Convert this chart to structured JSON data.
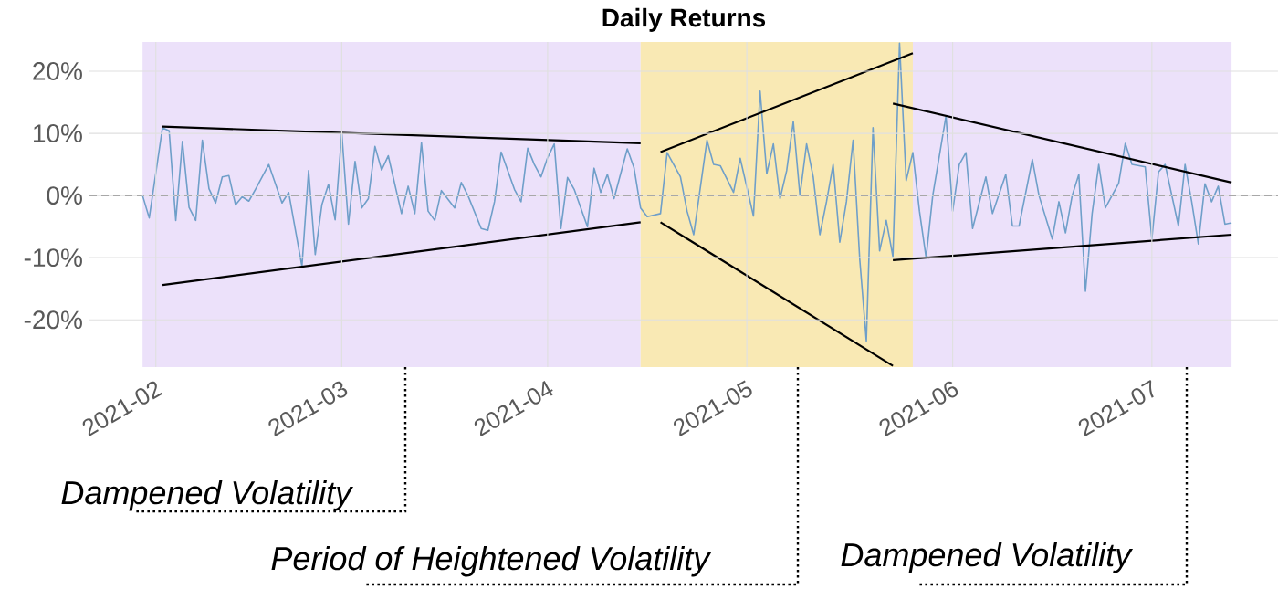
{
  "chart_data": {
    "type": "line",
    "title": "Daily Returns",
    "x": [
      "2021-01-30",
      "2021-01-31",
      "2021-02-02",
      "2021-02-03",
      "2021-02-04",
      "2021-02-05",
      "2021-02-06",
      "2021-02-07",
      "2021-02-08",
      "2021-02-09",
      "2021-02-10",
      "2021-02-11",
      "2021-02-12",
      "2021-02-13",
      "2021-02-14",
      "2021-02-15",
      "2021-02-16",
      "2021-02-18",
      "2021-02-20",
      "2021-02-21",
      "2021-02-23",
      "2021-02-24",
      "2021-02-25",
      "2021-02-26",
      "2021-02-27",
      "2021-02-28",
      "2021-03-01",
      "2021-03-02",
      "2021-03-03",
      "2021-03-04",
      "2021-03-05",
      "2021-03-06",
      "2021-03-07",
      "2021-03-08",
      "2021-03-10",
      "2021-03-11",
      "2021-03-12",
      "2021-03-13",
      "2021-03-14",
      "2021-03-15",
      "2021-03-16",
      "2021-03-18",
      "2021-03-19",
      "2021-03-20",
      "2021-03-22",
      "2021-03-23",
      "2021-03-24",
      "2021-03-25",
      "2021-03-27",
      "2021-03-28",
      "2021-03-29",
      "2021-03-30",
      "2021-03-31",
      "2021-04-01",
      "2021-04-02",
      "2021-04-03",
      "2021-04-04",
      "2021-04-05",
      "2021-04-07",
      "2021-04-08",
      "2021-04-09",
      "2021-04-10",
      "2021-04-11",
      "2021-04-13",
      "2021-04-14",
      "2021-04-15",
      "2021-04-16",
      "2021-04-18",
      "2021-04-19",
      "2021-04-21",
      "2021-04-22",
      "2021-04-23",
      "2021-04-25",
      "2021-04-26",
      "2021-04-27",
      "2021-04-29",
      "2021-04-30",
      "2021-05-02",
      "2021-05-03",
      "2021-05-04",
      "2021-05-05",
      "2021-05-06",
      "2021-05-07",
      "2021-05-08",
      "2021-05-09",
      "2021-05-10",
      "2021-05-11",
      "2021-05-12",
      "2021-05-13",
      "2021-05-14",
      "2021-05-15",
      "2021-05-16",
      "2021-05-17",
      "2021-05-18",
      "2021-05-19",
      "2021-05-20",
      "2021-05-21",
      "2021-05-22",
      "2021-05-23",
      "2021-05-24",
      "2021-05-25",
      "2021-05-26",
      "2021-05-27",
      "2021-05-28",
      "2021-05-29",
      "2021-05-31",
      "2021-06-01",
      "2021-06-02",
      "2021-06-03",
      "2021-06-04",
      "2021-06-06",
      "2021-06-07",
      "2021-06-09",
      "2021-06-10",
      "2021-06-11",
      "2021-06-13",
      "2021-06-14",
      "2021-06-16",
      "2021-06-17",
      "2021-06-18",
      "2021-06-19",
      "2021-06-20",
      "2021-06-21",
      "2021-06-22",
      "2021-06-23",
      "2021-06-24",
      "2021-06-26",
      "2021-06-27",
      "2021-06-28",
      "2021-06-30",
      "2021-07-01",
      "2021-07-02",
      "2021-07-03",
      "2021-07-05",
      "2021-07-06",
      "2021-07-07",
      "2021-07-08",
      "2021-07-09",
      "2021-07-10",
      "2021-07-11",
      "2021-07-12",
      "2021-07-13"
    ],
    "series": [
      {
        "color": "#6f9fc9",
        "values": [
          0,
          -3.6,
          10.9,
          10.4,
          -4.0,
          8.7,
          -1.9,
          -4.0,
          8.9,
          1.1,
          -1.2,
          3.0,
          3.2,
          -1.5,
          -0.2,
          -0.9,
          1.0,
          5.0,
          -1.2,
          0.5,
          -11.4,
          4.0,
          -9.5,
          -1.5,
          1.8,
          -3.9,
          10.1,
          -4.6,
          5.5,
          -2.0,
          -0.5,
          7.9,
          4.1,
          6.4,
          -2.9,
          1.5,
          -2.9,
          8.5,
          -2.5,
          -4.0,
          0.8,
          -2.0,
          2.1,
          0,
          -5.3,
          -5.6,
          -1.0,
          7.0,
          1.0,
          -1.0,
          7.6,
          5.0,
          3.0,
          6.1,
          8.3,
          -5.3,
          2.9,
          1.0,
          -5.0,
          4.4,
          0.5,
          3.4,
          -0.5,
          7.5,
          4.5,
          -2.0,
          -3.4,
          -2.9,
          6.9,
          3.0,
          -2.5,
          -6.3,
          8.9,
          5.0,
          4.8,
          0.5,
          6.0,
          -3.3,
          16.8,
          3.5,
          8.3,
          -0.5,
          4.0,
          11.9,
          0,
          8.3,
          3.0,
          -6.3,
          -1.0,
          5.0,
          -7.5,
          -1.0,
          8.9,
          -10.2,
          -23.4,
          10.9,
          -8.9,
          -4.0,
          -9.8,
          24.5,
          2.4,
          6.9,
          -2.5,
          -10.0,
          0,
          12.8,
          -2.5,
          5.0,
          6.9,
          -5.3,
          3.0,
          -2.9,
          3.4,
          -4.9,
          -4.9,
          5.8,
          0,
          -7.0,
          -1.0,
          -6.0,
          0,
          3.4,
          -15.4,
          -2.9,
          5.0,
          -2.0,
          2.0,
          8.4,
          5.0,
          4.6,
          -7.0,
          3.8,
          5.0,
          -4.9,
          5.0,
          -1.0,
          -7.8,
          1.9,
          -1.0,
          1.5,
          -4.6,
          -4.4
        ]
      },
      {
        "type": "line",
        "color": "#000000",
        "x": [
          "2021-02-02",
          "2021-04-15"
        ],
        "values": [
          11.1,
          8.4
        ]
      },
      {
        "type": "line",
        "color": "#000000",
        "x": [
          "2021-02-02",
          "2021-04-15"
        ],
        "values": [
          -14.4,
          -4.3
        ]
      },
      {
        "type": "line",
        "color": "#000000",
        "x": [
          "2021-04-18",
          "2021-05-26"
        ],
        "values": [
          7.0,
          22.9
        ]
      },
      {
        "type": "line",
        "color": "#000000",
        "x": [
          "2021-04-18",
          "2021-05-23"
        ],
        "values": [
          -4.3,
          -27.4
        ]
      },
      {
        "type": "line",
        "color": "#000000",
        "x": [
          "2021-05-23",
          "2021-07-13"
        ],
        "values": [
          14.8,
          2.1
        ]
      },
      {
        "type": "line",
        "color": "#000000",
        "x": [
          "2021-05-23",
          "2021-07-13"
        ],
        "values": [
          -10.4,
          -6.3
        ]
      }
    ],
    "xlim": [
      "2021-01-22",
      "2021-07-20"
    ],
    "ylim": [
      -27.6,
      24.7
    ],
    "xticks": [
      {
        "value": "2021-02-01",
        "label": "2021-02"
      },
      {
        "value": "2021-03-01",
        "label": "2021-03"
      },
      {
        "value": "2021-04-01",
        "label": "2021-04"
      },
      {
        "value": "2021-05-01",
        "label": "2021-05"
      },
      {
        "value": "2021-06-01",
        "label": "2021-06"
      },
      {
        "value": "2021-07-01",
        "label": "2021-07"
      }
    ],
    "yticks": [
      {
        "value": -20,
        "label": "-20%"
      },
      {
        "value": -10,
        "label": "-10%"
      },
      {
        "value": 0,
        "label": "0%"
      },
      {
        "value": 10,
        "label": "10%"
      },
      {
        "value": 20,
        "label": "20%"
      }
    ],
    "grid": true,
    "ref_lines": [
      {
        "axis": "y",
        "value": 0,
        "color": "#000000",
        "line_style": "dashed"
      }
    ],
    "bands": [
      {
        "axis": "x",
        "from": "2021-01-30",
        "to": "2021-04-15",
        "color": "#ece1fa"
      },
      {
        "axis": "x",
        "from": "2021-04-15",
        "to": "2021-05-26",
        "color": "#f9e9b4"
      },
      {
        "axis": "x",
        "from": "2021-05-26",
        "to": "2021-07-13",
        "color": "#ece1fa"
      }
    ],
    "annotations": [
      "Dampened Volatility",
      "Period of Heightened Volatility",
      "Dampened Volatility"
    ]
  }
}
